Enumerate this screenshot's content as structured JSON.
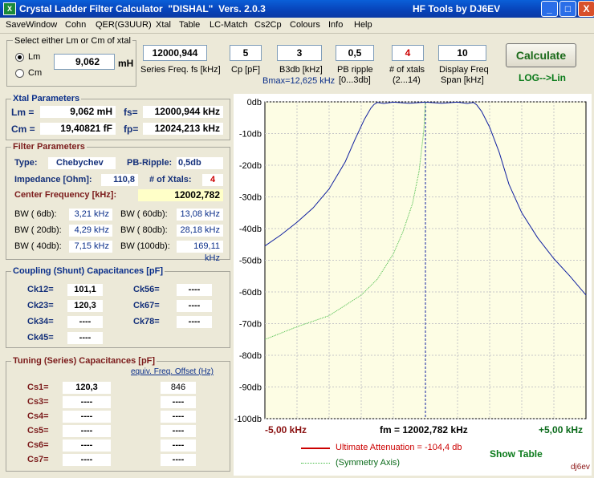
{
  "window": {
    "title": "Crystal Ladder Filter Calculator  \"DISHAL\"  Vers. 2.0.3",
    "brand": "HF Tools by DJ6EV",
    "minimize": "_",
    "maximize": "□",
    "close": "X"
  },
  "menu": [
    "SaveWindow",
    "Cohn",
    "QER(G3UUR)",
    "Xtal",
    "Table",
    "LC-Match",
    "Cs2Cp",
    "Colours",
    "Info",
    "Help"
  ],
  "xtal_select": {
    "title": "Select either Lm or Cm of xtal",
    "lm_label": "Lm",
    "cm_label": "Cm",
    "value": "9,062",
    "unit": "mH",
    "selected": "Lm"
  },
  "inputs": [
    {
      "value": "12000,944",
      "label": "Series Freq. fs [kHz]"
    },
    {
      "value": "5",
      "label": "Cp [pF]"
    },
    {
      "value": "3",
      "label": "B3db [kHz]",
      "note": "Bmax=12,625 kHz"
    },
    {
      "value": "0,5",
      "label": "PB ripple",
      "label2": "[0...3db]"
    },
    {
      "value": "4",
      "label": "# of xtals",
      "label2": "(2...14)"
    },
    {
      "value": "10",
      "label": "Display Freq",
      "label2": "Span [kHz]"
    }
  ],
  "calculate": {
    "label": "Calculate",
    "mode": "LOG-->Lin"
  },
  "xtal_params": {
    "title": "Xtal Parameters",
    "lm_label": "Lm =",
    "lm_value": "9,062 mH",
    "cm_label": "Cm =",
    "cm_value": "19,40821  fF",
    "fs_label": "fs=",
    "fs_value": "12000,944 kHz",
    "fp_label": "fp=",
    "fp_value": "12024,213 kHz"
  },
  "filter_params": {
    "title": "Filter Parameters",
    "type_label": "Type:",
    "type_value": "Chebychev",
    "ripple_label": "PB-Ripple:",
    "ripple_value": "0,5db",
    "impedance_label": "Impedance [Ohm]:",
    "impedance_value": "110,8",
    "nxtal_label": "# of Xtals:",
    "nxtal_value": "4",
    "center_label": "Center Frequency [kHz]:",
    "center_value": "12002,782",
    "bw": [
      {
        "label": "BW (  6db):",
        "value": "3,21 kHz",
        "label2": "BW ( 60db):",
        "value2": "13,08 kHz"
      },
      {
        "label": "BW ( 20db):",
        "value": "4,29 kHz",
        "label2": "BW ( 80db):",
        "value2": "28,18 kHz"
      },
      {
        "label": "BW ( 40db):",
        "value": "7,15 kHz",
        "label2": "BW (100db):",
        "value2": "169,11 kHz"
      }
    ]
  },
  "coupling": {
    "title": "Coupling (Shunt) Capacitances [pF]",
    "left": [
      {
        "label": "Ck12=",
        "value": "101,1"
      },
      {
        "label": "Ck23=",
        "value": "120,3"
      },
      {
        "label": "Ck34=",
        "value": "----"
      },
      {
        "label": "Ck45=",
        "value": "----"
      }
    ],
    "right": [
      {
        "label": "Ck56=",
        "value": "----"
      },
      {
        "label": "Ck67=",
        "value": "----"
      },
      {
        "label": "Ck78=",
        "value": "----"
      }
    ]
  },
  "tuning": {
    "title": "Tuning (Series) Capacitances [pF]",
    "offset_header": "equiv. Freq. Offset (Hz)",
    "rows": [
      {
        "label": "Cs1=",
        "value": "120,3",
        "offset": "846"
      },
      {
        "label": "Cs3=",
        "value": "----",
        "offset": "----"
      },
      {
        "label": "Cs4=",
        "value": "----",
        "offset": "----"
      },
      {
        "label": "Cs5=",
        "value": "----",
        "offset": "----"
      },
      {
        "label": "Cs6=",
        "value": "----",
        "offset": "----"
      },
      {
        "label": "Cs7=",
        "value": "----",
        "offset": "----"
      }
    ]
  },
  "chart_data": {
    "type": "line",
    "ylim": [
      -100,
      0
    ],
    "xlim": [
      -5,
      5
    ],
    "y_tick_labels": [
      "0db",
      "-10db",
      "-20db",
      "-30db",
      "-40db",
      "-50db",
      "-60db",
      "-70db",
      "-80db",
      "-90db",
      "-100db"
    ],
    "x_label_left": "-5,00 kHz",
    "x_label_center": "fm = 12002,782 kHz",
    "x_label_right": "+5,00 kHz",
    "series": [
      {
        "color": "#1020a0",
        "x": [
          -5,
          -4.5,
          -4,
          -3.5,
          -3,
          -2.5,
          -2.2,
          -1.9,
          -1.7,
          -1.6,
          -1.5,
          -1.3,
          -1,
          -0.5,
          0,
          0.5,
          1,
          1.3,
          1.5,
          1.6,
          1.75,
          2,
          2.3,
          2.6,
          3,
          3.5,
          4,
          4.5,
          5
        ],
        "y": [
          -45.5,
          -42,
          -38,
          -33.5,
          -27.5,
          -19,
          -12,
          -5.5,
          -2,
          -0.8,
          -0.2,
          -0.5,
          -0.1,
          -0.45,
          -0.1,
          -0.45,
          -0.1,
          -0.5,
          -0.2,
          -1,
          -3,
          -8,
          -16,
          -26,
          -35,
          -43,
          -49.5,
          -55,
          -61
        ]
      },
      {
        "color": "#44bb44",
        "x": [
          -5,
          -4,
          -3,
          -2,
          -1.5,
          -1,
          -0.7,
          -0.4,
          -0.2,
          -0.05,
          0
        ],
        "y": [
          -75,
          -71,
          -67.5,
          -61,
          -56,
          -48,
          -41,
          -32,
          -22,
          -9,
          0
        ]
      }
    ],
    "legend": [
      {
        "label": "Ultimate Attenuation =  -104,4 db",
        "color": "#cc0000"
      },
      {
        "label": "(Symmetry Axis)",
        "color": "#44bb44"
      }
    ],
    "show_table": "Show Table",
    "credit": "dj6ev"
  }
}
